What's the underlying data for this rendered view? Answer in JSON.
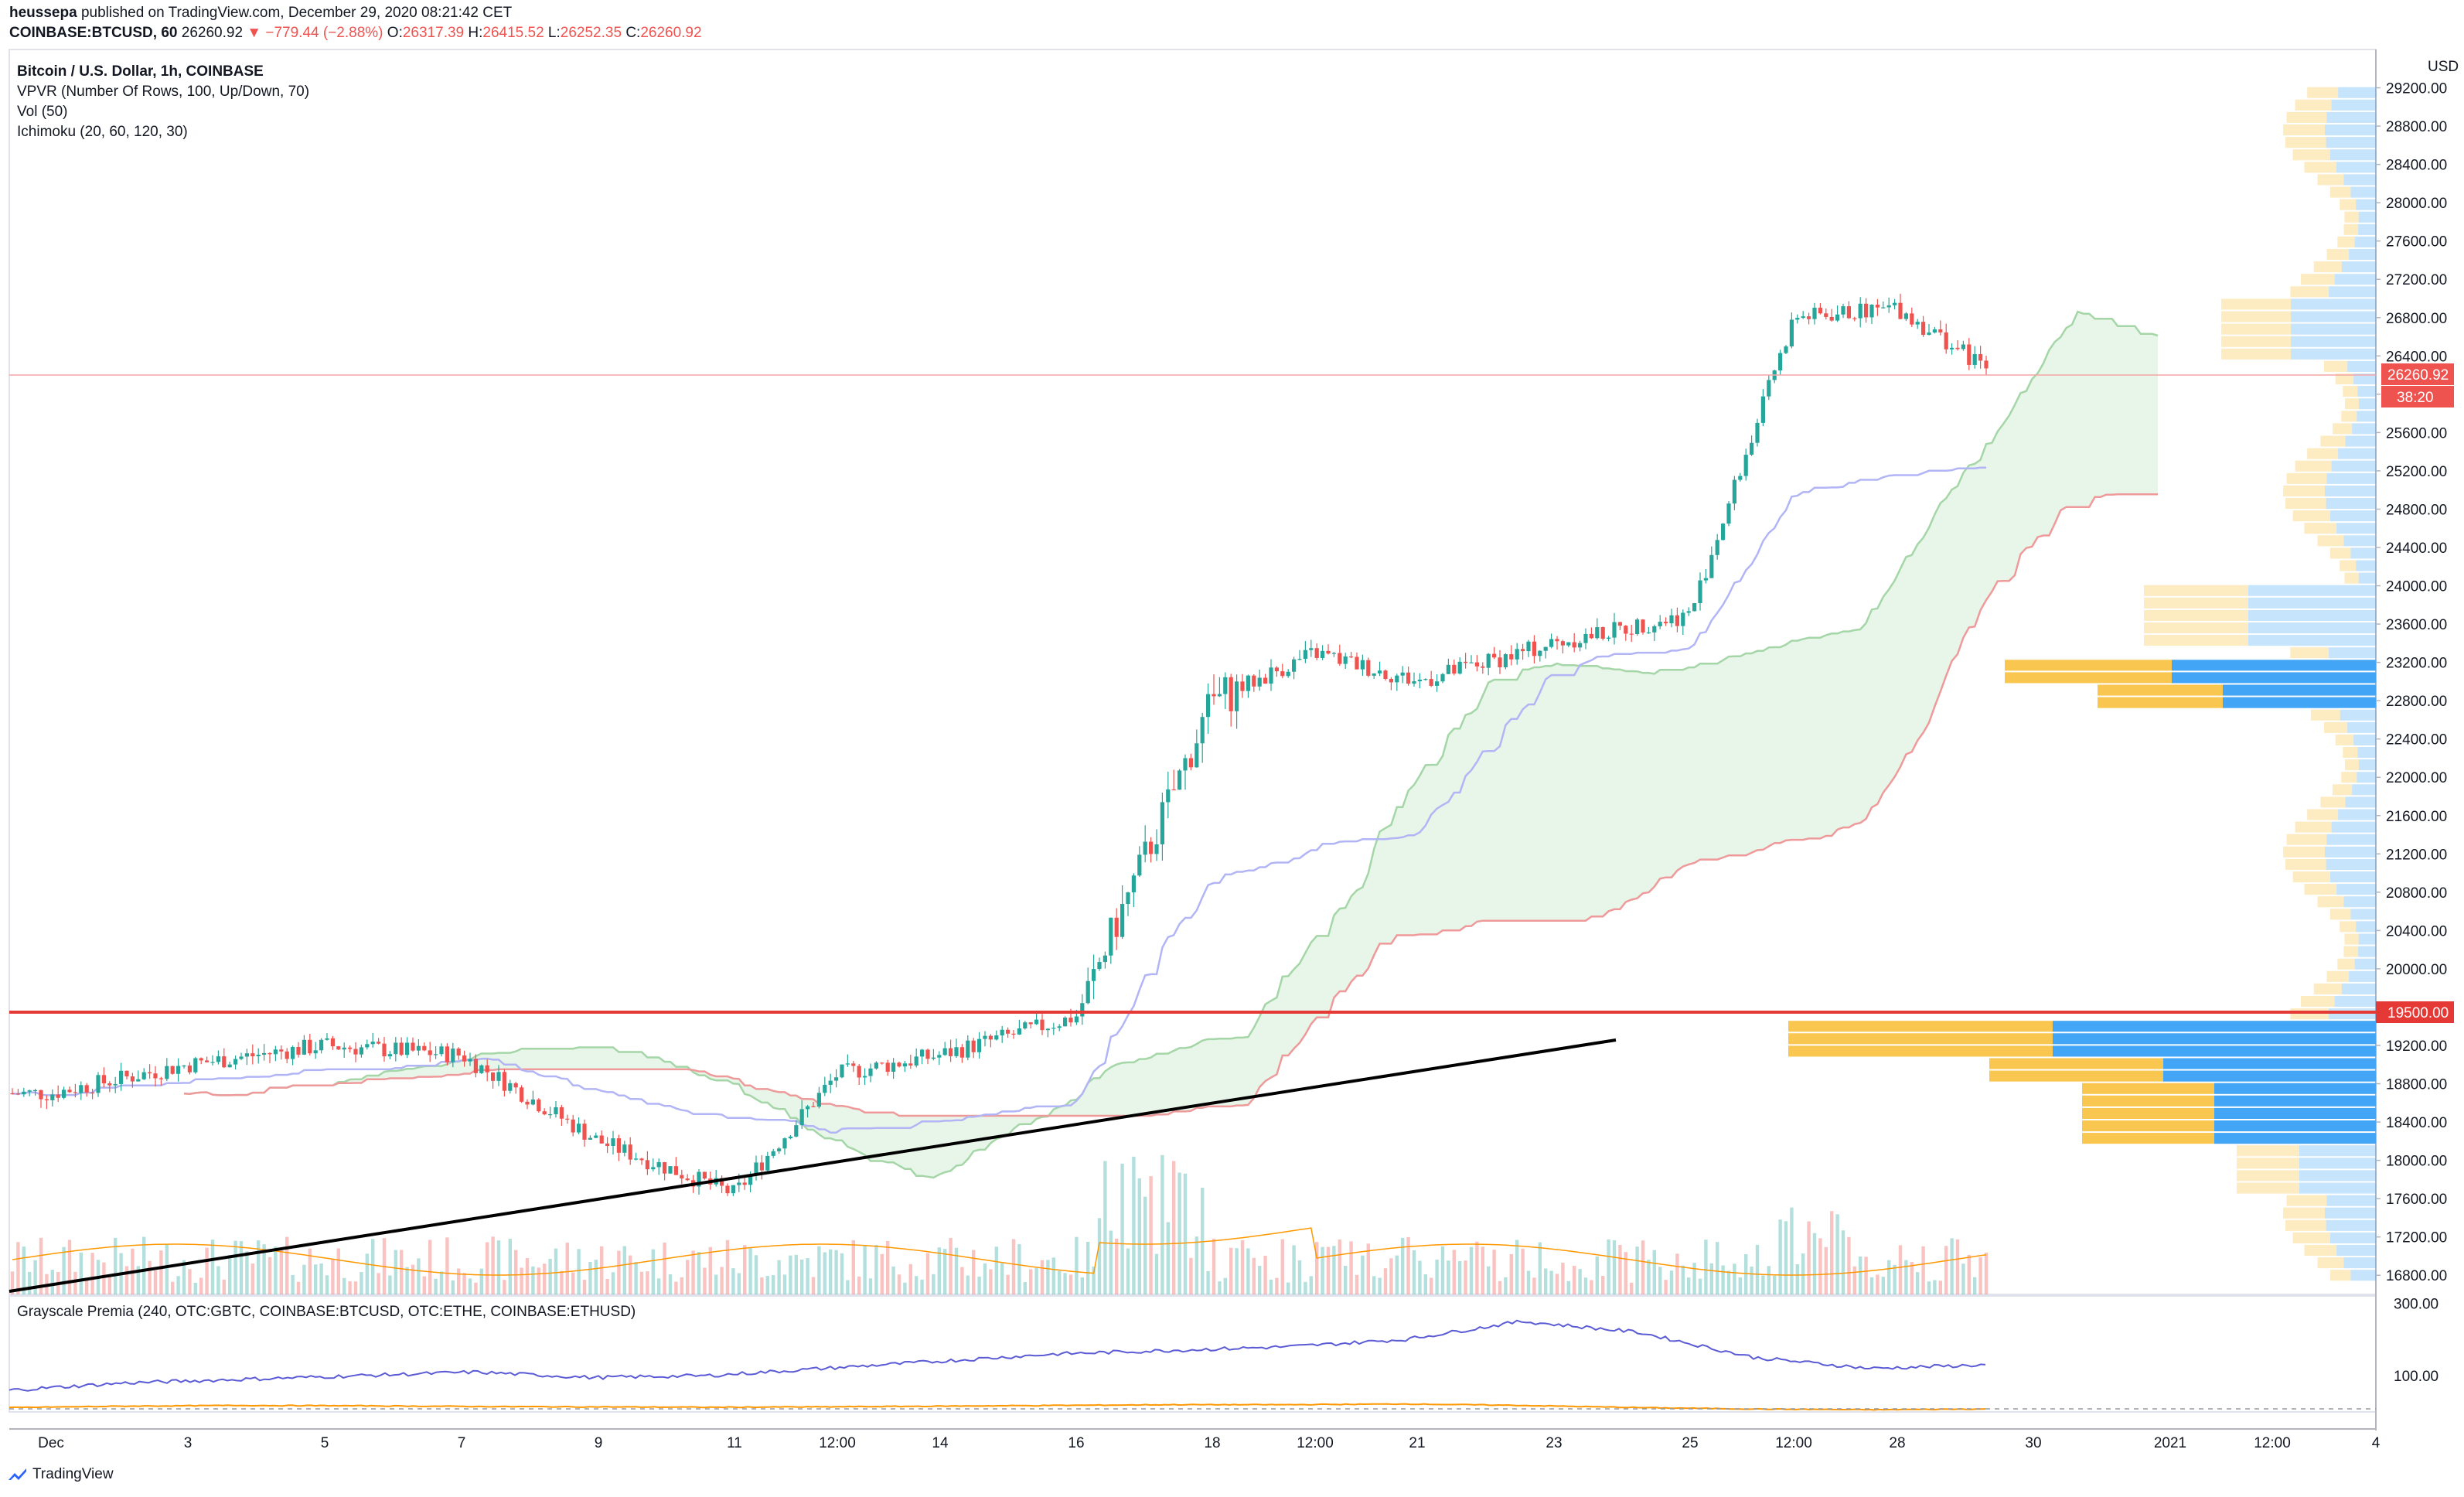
{
  "header": {
    "publisher": "heussepa",
    "published_text": "published on TradingView.com, December 29, 2020 08:21:42 CET",
    "symbol": "COINBASE:BTCUSD, 60",
    "last": "26260.92",
    "change": "−779.44 (−2.88%)",
    "o_label": "O:",
    "o_value": "26317.39",
    "h_label": "H:",
    "h_value": "26415.52",
    "l_label": "L:",
    "l_value": "26252.35",
    "c_label": "C:",
    "c_value": "26260.92"
  },
  "legend": {
    "title": "Bitcoin / U.S. Dollar, 1h, COINBASE",
    "vpvr": "VPVR (Number Of Rows, 100, Up/Down, 70)",
    "vol": "Vol (50)",
    "ichimoku": "Ichimoku (20, 60, 120, 30)"
  },
  "price_pane": {
    "currency": "USD",
    "last_price_tag": "26260.92",
    "countdown_tag": "38:20",
    "hline_tag": "19500.00",
    "y_ticks": [
      "29200.00",
      "28800.00",
      "28400.00",
      "28000.00",
      "27600.00",
      "27200.00",
      "26800.00",
      "26400.00",
      "26000.00",
      "25600.00",
      "25200.00",
      "24800.00",
      "24400.00",
      "24000.00",
      "23600.00",
      "23200.00",
      "22800.00",
      "22400.00",
      "22000.00",
      "21600.00",
      "21200.00",
      "20800.00",
      "20400.00",
      "20000.00",
      "19600.00",
      "19200.00",
      "18800.00",
      "18400.00",
      "18000.00",
      "17600.00",
      "17200.00",
      "16800.00"
    ]
  },
  "lower_pane": {
    "title": "Grayscale Premia (240, OTC:GBTC, COINBASE:BTCUSD, OTC:ETHE, COINBASE:ETHUSD)",
    "y_ticks": [
      "300.00",
      "100.00"
    ]
  },
  "x_axis": {
    "labels": [
      "Dec",
      "3",
      "5",
      "7",
      "9",
      "11",
      "12:00",
      "14",
      "16",
      "18",
      "12:00",
      "21",
      "23",
      "25",
      "12:00",
      "28",
      "30",
      "2021",
      "12:00",
      "4"
    ]
  },
  "branding": {
    "logo_text": "TradingView"
  },
  "colors": {
    "up": "#26a69a",
    "down": "#ef5350",
    "kijun": "#b2b5f5",
    "senkou_a": "#a5d6a7",
    "senkou_b": "#ef9a9a",
    "hline": "#e53935",
    "trendline": "#000000",
    "vp_up": "#42a5f5",
    "vp_down": "#f9c74f",
    "premia_btc": "#5b5bd6",
    "premia_eth": "#ff9800"
  },
  "chart_data": [
    {
      "type": "candlestick",
      "title": "Bitcoin / U.S. Dollar, 1h, COINBASE",
      "ylabel": "USD",
      "ylim": [
        16600,
        29600
      ],
      "x_dates": [
        "Dec 1",
        "Dec 3",
        "Dec 5",
        "Dec 7",
        "Dec 9",
        "Dec 11",
        "Dec 12",
        "Dec 14",
        "Dec 16",
        "Dec 18",
        "Dec 19",
        "Dec 21",
        "Dec 23",
        "Dec 25",
        "Dec 26",
        "Dec 28",
        "Dec 29"
      ],
      "close_anchors": [
        18700,
        19000,
        19200,
        19100,
        18200,
        17650,
        18900,
        19100,
        19500,
        22800,
        23300,
        23000,
        23400,
        23700,
        26800,
        26900,
        26260.92
      ],
      "hline": 19500.0,
      "trendline": [
        {
          "date": "Nov 30",
          "price": 16750
        },
        {
          "date": "Dec 23",
          "price": 18800
        }
      ],
      "volume_profile_levels": [
        23200,
        22900,
        19300,
        18900,
        18300,
        17900
      ]
    },
    {
      "type": "line",
      "title": "Grayscale Premia (240, OTC:GBTC, COINBASE:BTCUSD, OTC:ETHE, COINBASE:ETHUSD)",
      "ylim": [
        0,
        320
      ],
      "series": [
        {
          "values": [
            60,
            80,
            90,
            100,
            110,
            95,
            100,
            120,
            140,
            160,
            170,
            180,
            200,
            250,
            220,
            150,
            120,
            130
          ]
        },
        {
          "values": [
            12,
            16,
            18,
            17,
            15,
            14,
            13,
            14,
            16,
            18,
            20,
            20,
            22,
            18,
            12,
            8,
            6,
            8
          ]
        }
      ]
    }
  ]
}
